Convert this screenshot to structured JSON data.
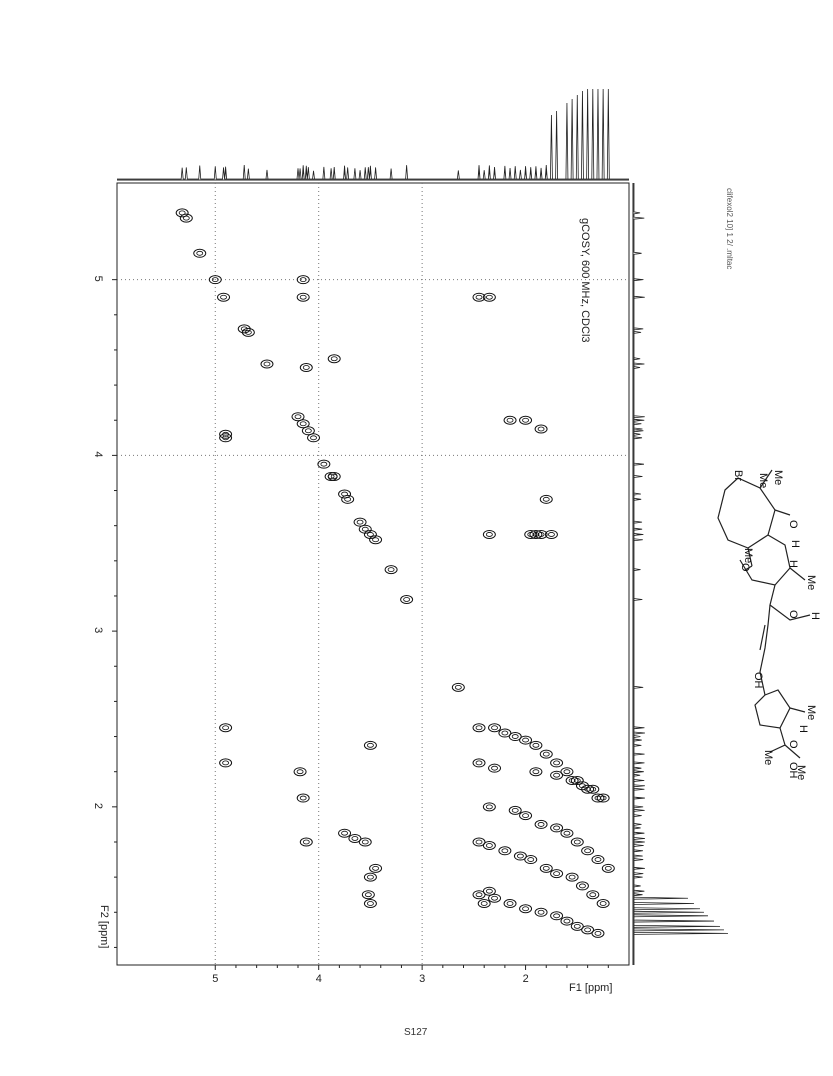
{
  "chart_data": {
    "type": "scatter",
    "title": "gCOSY, 600 MHz, CDCl3",
    "xlabel": "F1 [ppm]",
    "ylabel": "F2 [ppm]",
    "x_ticks": [
      "5",
      "4",
      "3",
      "2"
    ],
    "y_ticks": [
      "5",
      "4",
      "3",
      "2"
    ],
    "xlim": [
      5.95,
      1.0
    ],
    "ylim": [
      5.55,
      1.1
    ],
    "grid": false,
    "series": [
      {
        "name": "",
        "x": [
          5.32,
          5.28,
          5.15,
          5.0,
          4.92,
          4.72,
          4.68,
          4.5,
          4.2,
          4.15,
          4.1,
          4.05,
          3.95,
          3.85,
          3.75,
          3.72,
          3.6,
          3.55,
          3.5,
          3.45,
          3.3,
          3.15,
          2.65,
          4.15,
          4.15,
          4.9,
          4.9,
          4.9,
          4.9,
          4.12,
          3.88,
          3.85,
          2.15,
          2.0,
          1.85,
          1.8,
          1.85,
          1.95,
          1.75,
          1.9,
          2.45,
          2.35,
          2.35,
          3.5,
          2.45,
          2.3,
          2.2,
          2.1,
          2.0,
          1.9,
          1.8,
          1.7,
          1.6,
          1.5,
          1.4,
          1.3,
          2.45,
          2.3,
          1.9,
          1.7,
          1.55,
          1.45,
          1.35,
          1.25,
          2.35,
          2.1,
          2.0,
          1.85,
          1.7,
          1.6,
          1.5,
          1.4,
          1.3,
          1.2,
          2.45,
          2.35,
          2.2,
          2.05,
          1.95,
          1.8,
          1.7,
          1.55,
          1.45,
          1.35,
          1.25,
          2.45,
          2.3,
          2.15,
          2.0,
          1.85,
          1.7,
          1.6,
          1.5,
          1.4,
          1.3,
          4.18,
          4.15,
          4.12,
          3.75,
          3.65,
          3.55,
          3.5,
          3.52,
          3.45,
          3.5,
          2.4,
          2.35
        ],
        "y": [
          5.38,
          5.35,
          5.15,
          5.0,
          4.9,
          4.72,
          4.7,
          4.52,
          4.22,
          4.18,
          4.14,
          4.1,
          3.95,
          3.88,
          3.78,
          3.75,
          3.62,
          3.58,
          3.55,
          3.52,
          3.35,
          3.18,
          2.68,
          5.0,
          4.9,
          4.12,
          4.1,
          2.45,
          2.25,
          4.5,
          3.88,
          4.55,
          4.2,
          4.2,
          4.15,
          3.75,
          3.55,
          3.55,
          3.55,
          3.55,
          4.9,
          4.9,
          3.55,
          2.35,
          2.45,
          2.45,
          2.42,
          2.4,
          2.38,
          2.35,
          2.3,
          2.25,
          2.2,
          2.15,
          2.1,
          2.05,
          2.25,
          2.22,
          2.2,
          2.18,
          2.15,
          2.12,
          2.1,
          2.05,
          2.0,
          1.98,
          1.95,
          1.9,
          1.88,
          1.85,
          1.8,
          1.75,
          1.7,
          1.65,
          1.8,
          1.78,
          1.75,
          1.72,
          1.7,
          1.65,
          1.62,
          1.6,
          1.55,
          1.5,
          1.45,
          1.5,
          1.48,
          1.45,
          1.42,
          1.4,
          1.38,
          1.35,
          1.32,
          1.3,
          1.28,
          2.2,
          2.05,
          1.8,
          1.85,
          1.82,
          1.8,
          1.6,
          1.5,
          1.65,
          1.45,
          1.45,
          1.52
        ]
      }
    ]
  },
  "side_label": "clifexol2 10] 1 2/ .mltac",
  "molecule": {
    "labels": [
      "Me",
      "Me",
      "Br",
      "O",
      "H",
      "Me",
      "O",
      "H",
      "Me",
      "O",
      "H",
      "OH",
      "Me",
      "O",
      "H",
      "Me",
      "Me",
      "OH"
    ]
  },
  "page_number": "S127"
}
